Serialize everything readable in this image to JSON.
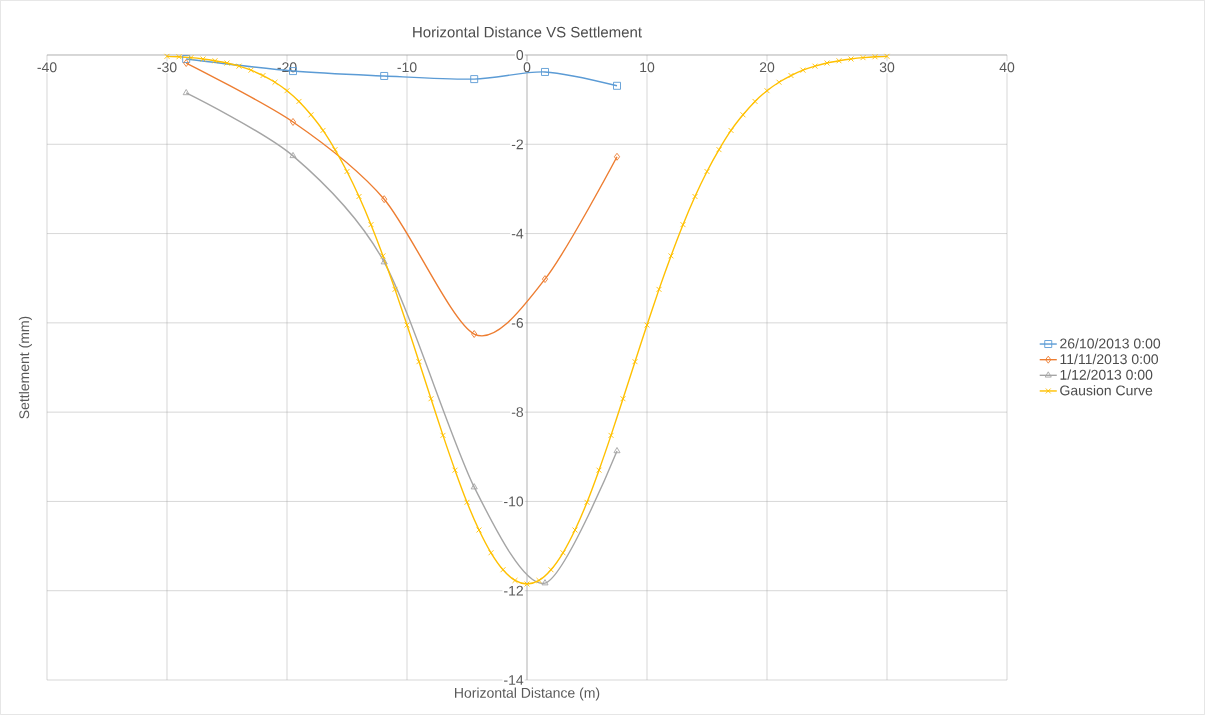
{
  "chart_data": {
    "type": "line",
    "title": "Horizontal Distance VS Settlement",
    "xlabel": "Horizontal Distance (m)",
    "ylabel": "Settlement (mm)",
    "xlim": [
      -40,
      40
    ],
    "xticks": [
      -40,
      -30,
      -20,
      -10,
      0,
      10,
      20,
      30,
      40
    ],
    "ylim": [
      -14,
      0
    ],
    "yticks": [
      -14,
      -12,
      -10,
      -8,
      -6,
      -4,
      -2,
      0
    ],
    "grid": true,
    "legend": "right",
    "line_style": "solid",
    "series": [
      {
        "name": "26/10/2013 0:00",
        "color": "#5b9bd5",
        "marker": "square",
        "x": [
          -28.4,
          -19.5,
          -11.9,
          -4.4,
          1.5,
          7.5
        ],
        "values": [
          -0.09,
          -0.36,
          -0.47,
          -0.54,
          -0.38,
          -0.69
        ]
      },
      {
        "name": "11/11/2013 0:00",
        "color": "#ed7d31",
        "marker": "diamond",
        "x": [
          -28.4,
          -19.5,
          -11.9,
          -4.4,
          1.5,
          7.5
        ],
        "values": [
          -0.18,
          -1.5,
          -3.23,
          -6.25,
          -5.02,
          -2.28
        ]
      },
      {
        "name": "1/12/2013 0:00",
        "color": "#a5a5a5",
        "marker": "triangle",
        "x": [
          -28.4,
          -19.5,
          -11.9,
          -4.4,
          1.5,
          7.5
        ],
        "values": [
          -0.85,
          -2.26,
          -4.64,
          -9.68,
          -11.83,
          -8.87
        ]
      },
      {
        "name": "Gausion Curve",
        "color": "#ffc000",
        "marker": "cross",
        "x": [
          -30,
          -29,
          -28,
          -27,
          -26,
          -25,
          -24,
          -23,
          -22,
          -21,
          -20,
          -19,
          -18,
          -17,
          -16,
          -15,
          -14,
          -13,
          -12,
          -11,
          -10,
          -9,
          -8,
          -7,
          -6,
          -5,
          -4,
          -3,
          -2,
          -1,
          0,
          1,
          2,
          3,
          4,
          5,
          6,
          7,
          8,
          9,
          10,
          11,
          12,
          13,
          14,
          15,
          16,
          17,
          18,
          19,
          20,
          21,
          22,
          23,
          24,
          25,
          26,
          27,
          28,
          29,
          30
        ],
        "values": [
          -0.03,
          -0.04,
          -0.06,
          -0.09,
          -0.13,
          -0.18,
          -0.25,
          -0.34,
          -0.46,
          -0.61,
          -0.8,
          -1.04,
          -1.34,
          -1.69,
          -2.12,
          -2.61,
          -3.17,
          -3.8,
          -4.5,
          -5.25,
          -6.05,
          -6.87,
          -7.7,
          -8.52,
          -9.3,
          -10.02,
          -10.64,
          -11.15,
          -11.53,
          -11.77,
          -11.85,
          -11.77,
          -11.53,
          -11.15,
          -10.64,
          -10.02,
          -9.3,
          -8.52,
          -7.7,
          -6.87,
          -6.05,
          -5.25,
          -4.5,
          -3.8,
          -3.17,
          -2.61,
          -2.12,
          -1.69,
          -1.34,
          -1.04,
          -0.8,
          -0.61,
          -0.46,
          -0.34,
          -0.25,
          -0.18,
          -0.13,
          -0.09,
          -0.06,
          -0.04,
          -0.03
        ]
      }
    ]
  }
}
